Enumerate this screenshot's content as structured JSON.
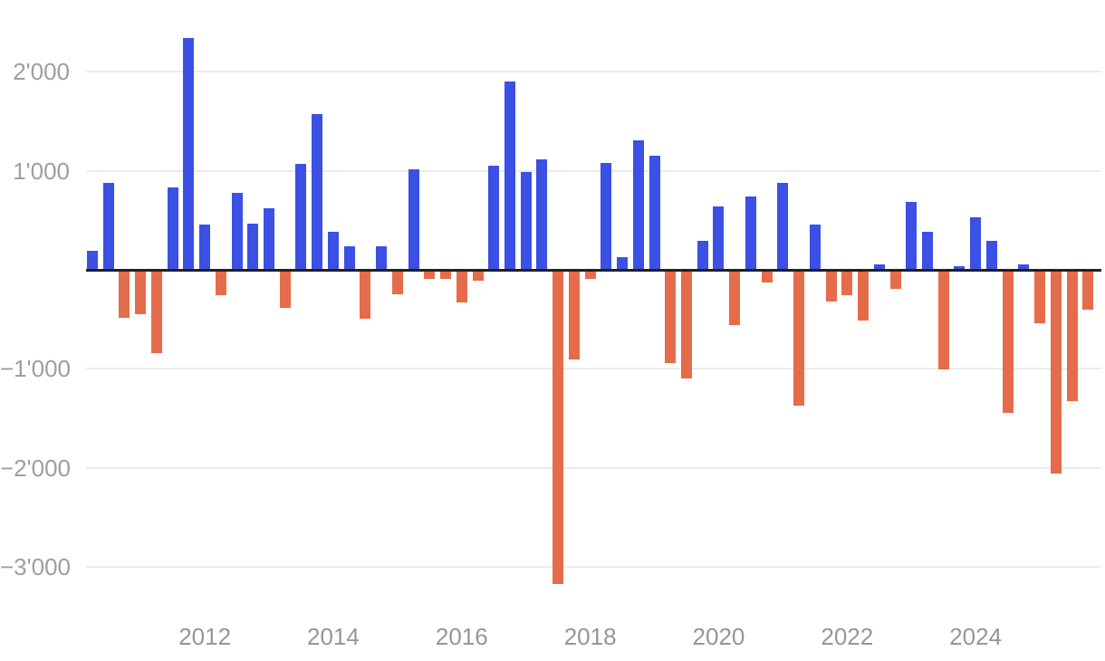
{
  "chart_data": {
    "type": "bar",
    "title": "",
    "xlabel": "",
    "ylabel": "",
    "number_format": "swiss-apostrophe-thousands",
    "grid": true,
    "legend": false,
    "ylim": [
      -3500,
      2500
    ],
    "x": [
      "2010 Q2",
      "2010 Q3",
      "2010 Q4",
      "2011 Q1",
      "2011 Q2",
      "2011 Q3",
      "2011 Q4",
      "2012 Q1",
      "2012 Q2",
      "2012 Q3",
      "2012 Q4",
      "2013 Q1",
      "2013 Q2",
      "2013 Q3",
      "2013 Q4",
      "2014 Q1",
      "2014 Q2",
      "2014 Q3",
      "2014 Q4",
      "2015 Q1",
      "2015 Q2",
      "2015 Q3",
      "2015 Q4",
      "2016 Q1",
      "2016 Q2",
      "2016 Q3",
      "2016 Q4",
      "2017 Q1",
      "2017 Q2",
      "2017 Q3",
      "2017 Q4",
      "2018 Q1",
      "2018 Q2",
      "2018 Q3",
      "2018 Q4",
      "2019 Q1",
      "2019 Q2",
      "2019 Q3",
      "2019 Q4",
      "2020 Q1",
      "2020 Q2",
      "2020 Q3",
      "2020 Q4",
      "2021 Q1",
      "2021 Q2",
      "2021 Q3",
      "2021 Q4",
      "2022 Q1",
      "2022 Q2",
      "2022 Q3",
      "2022 Q4",
      "2023 Q1",
      "2023 Q2",
      "2023 Q3",
      "2023 Q4",
      "2024 Q1",
      "2024 Q2",
      "2024 Q3",
      "2024 Q4",
      "2025 Q1",
      "2025 Q2",
      "2025 Q3",
      "2025 Q4"
    ],
    "values": [
      185,
      870,
      -465,
      -430,
      -820,
      820,
      2330,
      450,
      -240,
      770,
      455,
      615,
      -370,
      1060,
      1565,
      375,
      225,
      -475,
      230,
      -225,
      1010,
      -70,
      -70,
      -315,
      -90,
      1040,
      1890,
      975,
      1105,
      -3160,
      -890,
      -75,
      1070,
      120,
      1300,
      1140,
      -920,
      -1080,
      280,
      635,
      -540,
      735,
      -110,
      865,
      -1355,
      450,
      -300,
      -240,
      -495,
      45,
      -175,
      680,
      375,
      -985,
      25,
      525,
      280,
      -1430,
      45,
      -525,
      -2040,
      -1305,
      -385
    ],
    "yticks": [
      {
        "value": 2000,
        "label": "2'000"
      },
      {
        "value": 1000,
        "label": "1'000"
      },
      {
        "value": -1000,
        "label": "−1'000"
      },
      {
        "value": -2000,
        "label": "−2'000"
      },
      {
        "value": -3000,
        "label": "−3'000"
      }
    ],
    "xticks": [
      {
        "label": "2012",
        "quarter": "2012 Q1"
      },
      {
        "label": "2014",
        "quarter": "2014 Q1"
      },
      {
        "label": "2016",
        "quarter": "2016 Q1"
      },
      {
        "label": "2018",
        "quarter": "2018 Q1"
      },
      {
        "label": "2020",
        "quarter": "2020 Q1"
      },
      {
        "label": "2022",
        "quarter": "2022 Q1"
      },
      {
        "label": "2024",
        "quarter": "2024 Q1"
      }
    ],
    "colors": {
      "positive": "#3b50e4",
      "negative": "#e56c4a",
      "gridline": "#ebebeb",
      "zero_line": "#212121",
      "y_tick_text": "#9e9e9e",
      "x_tick_text": "#969696",
      "background": "#ffffff"
    }
  }
}
